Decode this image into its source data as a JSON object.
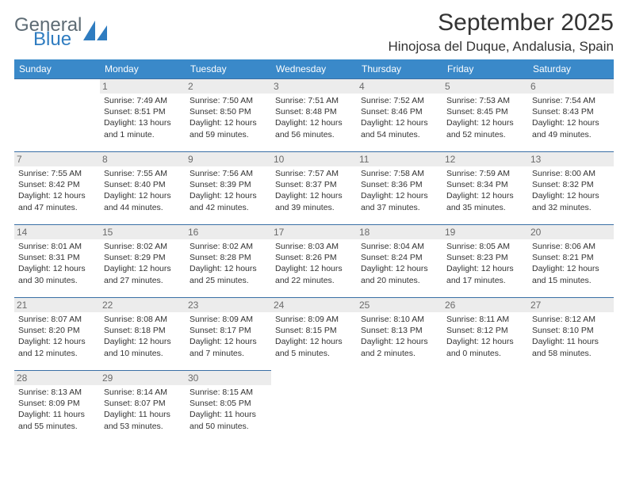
{
  "logo": {
    "primary": "General",
    "secondary": "Blue"
  },
  "header": {
    "month_title": "September 2025",
    "location": "Hinojosa del Duque, Andalusia, Spain"
  },
  "colors": {
    "header_bg": "#3a89c9",
    "header_fg": "#ffffff",
    "cell_border": "#3a6fa5",
    "daynum_bg": "#ececec",
    "daynum_fg": "#6b6b6b",
    "text": "#333333",
    "logo_primary": "#5d6b74",
    "logo_secondary": "#2f7cc0"
  },
  "weekdays": [
    "Sunday",
    "Monday",
    "Tuesday",
    "Wednesday",
    "Thursday",
    "Friday",
    "Saturday"
  ],
  "weeks": [
    [
      {
        "day": "",
        "sunrise": "",
        "sunset": "",
        "daylight": ""
      },
      {
        "day": "1",
        "sunrise": "Sunrise: 7:49 AM",
        "sunset": "Sunset: 8:51 PM",
        "daylight": "Daylight: 13 hours and 1 minute."
      },
      {
        "day": "2",
        "sunrise": "Sunrise: 7:50 AM",
        "sunset": "Sunset: 8:50 PM",
        "daylight": "Daylight: 12 hours and 59 minutes."
      },
      {
        "day": "3",
        "sunrise": "Sunrise: 7:51 AM",
        "sunset": "Sunset: 8:48 PM",
        "daylight": "Daylight: 12 hours and 56 minutes."
      },
      {
        "day": "4",
        "sunrise": "Sunrise: 7:52 AM",
        "sunset": "Sunset: 8:46 PM",
        "daylight": "Daylight: 12 hours and 54 minutes."
      },
      {
        "day": "5",
        "sunrise": "Sunrise: 7:53 AM",
        "sunset": "Sunset: 8:45 PM",
        "daylight": "Daylight: 12 hours and 52 minutes."
      },
      {
        "day": "6",
        "sunrise": "Sunrise: 7:54 AM",
        "sunset": "Sunset: 8:43 PM",
        "daylight": "Daylight: 12 hours and 49 minutes."
      }
    ],
    [
      {
        "day": "7",
        "sunrise": "Sunrise: 7:55 AM",
        "sunset": "Sunset: 8:42 PM",
        "daylight": "Daylight: 12 hours and 47 minutes."
      },
      {
        "day": "8",
        "sunrise": "Sunrise: 7:55 AM",
        "sunset": "Sunset: 8:40 PM",
        "daylight": "Daylight: 12 hours and 44 minutes."
      },
      {
        "day": "9",
        "sunrise": "Sunrise: 7:56 AM",
        "sunset": "Sunset: 8:39 PM",
        "daylight": "Daylight: 12 hours and 42 minutes."
      },
      {
        "day": "10",
        "sunrise": "Sunrise: 7:57 AM",
        "sunset": "Sunset: 8:37 PM",
        "daylight": "Daylight: 12 hours and 39 minutes."
      },
      {
        "day": "11",
        "sunrise": "Sunrise: 7:58 AM",
        "sunset": "Sunset: 8:36 PM",
        "daylight": "Daylight: 12 hours and 37 minutes."
      },
      {
        "day": "12",
        "sunrise": "Sunrise: 7:59 AM",
        "sunset": "Sunset: 8:34 PM",
        "daylight": "Daylight: 12 hours and 35 minutes."
      },
      {
        "day": "13",
        "sunrise": "Sunrise: 8:00 AM",
        "sunset": "Sunset: 8:32 PM",
        "daylight": "Daylight: 12 hours and 32 minutes."
      }
    ],
    [
      {
        "day": "14",
        "sunrise": "Sunrise: 8:01 AM",
        "sunset": "Sunset: 8:31 PM",
        "daylight": "Daylight: 12 hours and 30 minutes."
      },
      {
        "day": "15",
        "sunrise": "Sunrise: 8:02 AM",
        "sunset": "Sunset: 8:29 PM",
        "daylight": "Daylight: 12 hours and 27 minutes."
      },
      {
        "day": "16",
        "sunrise": "Sunrise: 8:02 AM",
        "sunset": "Sunset: 8:28 PM",
        "daylight": "Daylight: 12 hours and 25 minutes."
      },
      {
        "day": "17",
        "sunrise": "Sunrise: 8:03 AM",
        "sunset": "Sunset: 8:26 PM",
        "daylight": "Daylight: 12 hours and 22 minutes."
      },
      {
        "day": "18",
        "sunrise": "Sunrise: 8:04 AM",
        "sunset": "Sunset: 8:24 PM",
        "daylight": "Daylight: 12 hours and 20 minutes."
      },
      {
        "day": "19",
        "sunrise": "Sunrise: 8:05 AM",
        "sunset": "Sunset: 8:23 PM",
        "daylight": "Daylight: 12 hours and 17 minutes."
      },
      {
        "day": "20",
        "sunrise": "Sunrise: 8:06 AM",
        "sunset": "Sunset: 8:21 PM",
        "daylight": "Daylight: 12 hours and 15 minutes."
      }
    ],
    [
      {
        "day": "21",
        "sunrise": "Sunrise: 8:07 AM",
        "sunset": "Sunset: 8:20 PM",
        "daylight": "Daylight: 12 hours and 12 minutes."
      },
      {
        "day": "22",
        "sunrise": "Sunrise: 8:08 AM",
        "sunset": "Sunset: 8:18 PM",
        "daylight": "Daylight: 12 hours and 10 minutes."
      },
      {
        "day": "23",
        "sunrise": "Sunrise: 8:09 AM",
        "sunset": "Sunset: 8:17 PM",
        "daylight": "Daylight: 12 hours and 7 minutes."
      },
      {
        "day": "24",
        "sunrise": "Sunrise: 8:09 AM",
        "sunset": "Sunset: 8:15 PM",
        "daylight": "Daylight: 12 hours and 5 minutes."
      },
      {
        "day": "25",
        "sunrise": "Sunrise: 8:10 AM",
        "sunset": "Sunset: 8:13 PM",
        "daylight": "Daylight: 12 hours and 2 minutes."
      },
      {
        "day": "26",
        "sunrise": "Sunrise: 8:11 AM",
        "sunset": "Sunset: 8:12 PM",
        "daylight": "Daylight: 12 hours and 0 minutes."
      },
      {
        "day": "27",
        "sunrise": "Sunrise: 8:12 AM",
        "sunset": "Sunset: 8:10 PM",
        "daylight": "Daylight: 11 hours and 58 minutes."
      }
    ],
    [
      {
        "day": "28",
        "sunrise": "Sunrise: 8:13 AM",
        "sunset": "Sunset: 8:09 PM",
        "daylight": "Daylight: 11 hours and 55 minutes."
      },
      {
        "day": "29",
        "sunrise": "Sunrise: 8:14 AM",
        "sunset": "Sunset: 8:07 PM",
        "daylight": "Daylight: 11 hours and 53 minutes."
      },
      {
        "day": "30",
        "sunrise": "Sunrise: 8:15 AM",
        "sunset": "Sunset: 8:05 PM",
        "daylight": "Daylight: 11 hours and 50 minutes."
      },
      {
        "day": "",
        "sunrise": "",
        "sunset": "",
        "daylight": ""
      },
      {
        "day": "",
        "sunrise": "",
        "sunset": "",
        "daylight": ""
      },
      {
        "day": "",
        "sunrise": "",
        "sunset": "",
        "daylight": ""
      },
      {
        "day": "",
        "sunrise": "",
        "sunset": "",
        "daylight": ""
      }
    ]
  ]
}
